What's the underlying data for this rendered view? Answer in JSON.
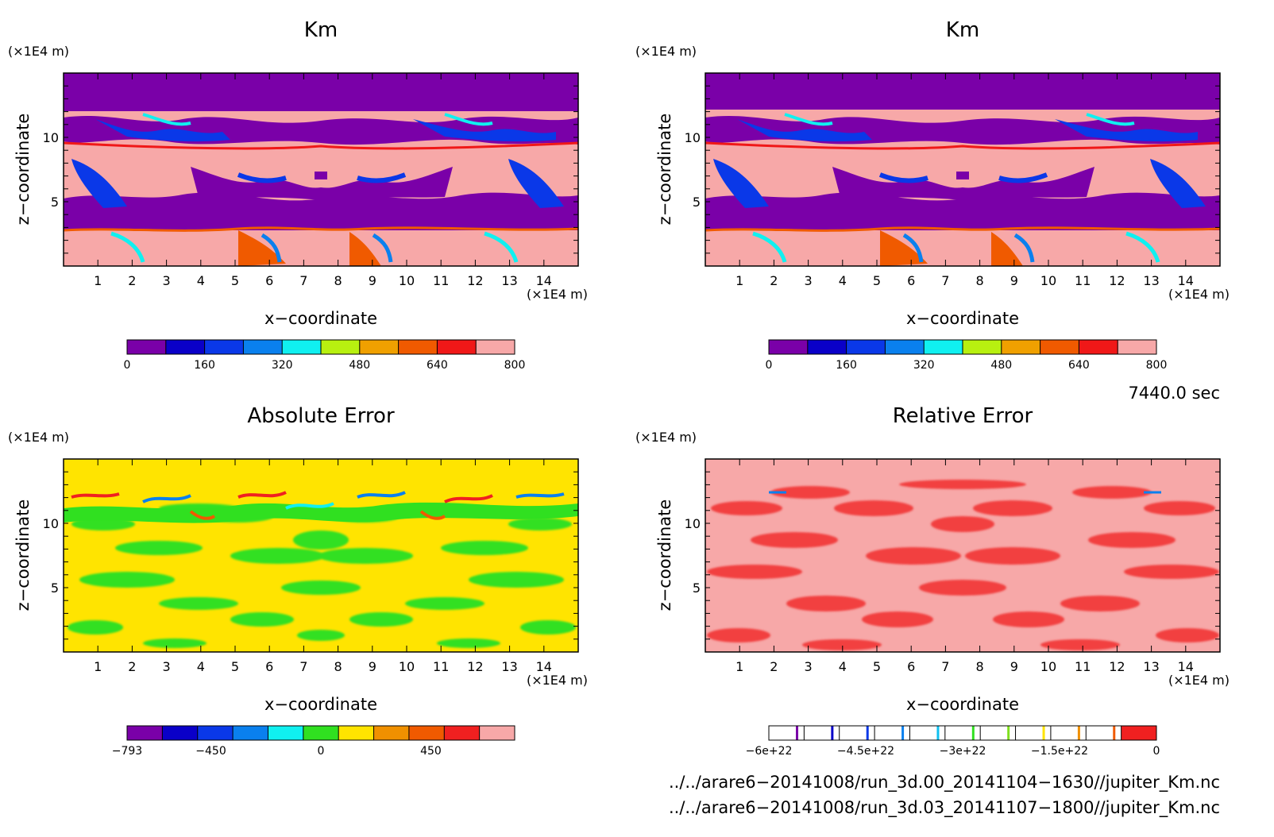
{
  "panels": [
    {
      "id": "km-left",
      "title": "Km",
      "xlabel": "x−coordinate",
      "ylabel": "z−coordinate",
      "xunit": "(×1E4 m)",
      "yunit": "(×1E4 m)",
      "xticks": [
        "1",
        "2",
        "3",
        "4",
        "5",
        "6",
        "7",
        "8",
        "9",
        "10",
        "11",
        "12",
        "13",
        "14"
      ],
      "yticks": [
        "5",
        "10"
      ],
      "colorbar": {
        "colors": [
          "#7a00a8",
          "#0a00c8",
          "#0a38e8",
          "#0a80ee",
          "#10f0f0",
          "#b8f010",
          "#f0a000",
          "#f05a00",
          "#f01818",
          "#f7a8a8"
        ],
        "ticks": [
          "0",
          "160",
          "320",
          "480",
          "640",
          "800"
        ],
        "tick_values": [
          0,
          160,
          320,
          480,
          640,
          800
        ],
        "range": [
          0,
          800
        ],
        "style": "filled"
      }
    },
    {
      "id": "km-right",
      "title": "Km",
      "xlabel": "x−coordinate",
      "ylabel": "z−coordinate",
      "xunit": "(×1E4 m)",
      "yunit": "(×1E4 m)",
      "xticks": [
        "1",
        "2",
        "3",
        "4",
        "5",
        "6",
        "7",
        "8",
        "9",
        "10",
        "11",
        "12",
        "13",
        "14"
      ],
      "yticks": [
        "5",
        "10"
      ],
      "colorbar": {
        "colors": [
          "#7a00a8",
          "#0a00c8",
          "#0a38e8",
          "#0a80ee",
          "#10f0f0",
          "#b8f010",
          "#f0a000",
          "#f05a00",
          "#f01818",
          "#f7a8a8"
        ],
        "ticks": [
          "0",
          "160",
          "320",
          "480",
          "640",
          "800"
        ],
        "tick_values": [
          0,
          160,
          320,
          480,
          640,
          800
        ],
        "range": [
          0,
          800
        ],
        "style": "filled"
      }
    },
    {
      "id": "abs-error",
      "title": "Absolute Error",
      "xlabel": "x−coordinate",
      "ylabel": "z−coordinate",
      "xunit": "(×1E4 m)",
      "yunit": "(×1E4 m)",
      "xticks": [
        "1",
        "2",
        "3",
        "4",
        "5",
        "6",
        "7",
        "8",
        "9",
        "10",
        "11",
        "12",
        "13",
        "14"
      ],
      "yticks": [
        "5",
        "10"
      ],
      "colorbar": {
        "colors": [
          "#7a00a8",
          "#0a00c8",
          "#0a38e8",
          "#0a80ee",
          "#10f0f0",
          "#30e020",
          "#ffe400",
          "#f09000",
          "#f05a00",
          "#f02020",
          "#f7a8a8"
        ],
        "ticks": [
          "−793",
          "−450",
          "0",
          "450"
        ],
        "tick_values": [
          -793,
          -450,
          0,
          450
        ],
        "range": [
          -793,
          793
        ],
        "style": "filled"
      }
    },
    {
      "id": "rel-error",
      "title": "Relative Error",
      "xlabel": "x−coordinate",
      "ylabel": "z−coordinate",
      "xunit": "(×1E4 m)",
      "yunit": "(×1E4 m)",
      "xticks": [
        "1",
        "2",
        "3",
        "4",
        "5",
        "6",
        "7",
        "8",
        "9",
        "10",
        "11",
        "12",
        "13",
        "14"
      ],
      "yticks": [
        "5",
        "10"
      ],
      "colorbar": {
        "colors": [
          "#7a00a8",
          "#0a00c8",
          "#0a38e8",
          "#0a80ee",
          "#10c0f0",
          "#30e020",
          "#80e020",
          "#ffe400",
          "#f09000",
          "#f05a00",
          "#f02020"
        ],
        "ticks": [
          "−6e+22",
          "−4.5e+22",
          "−3e+22",
          "−1.5e+22",
          "0"
        ],
        "tick_values": [
          -6e+22,
          -4.5e+22,
          -3e+22,
          -1.5e+22,
          0
        ],
        "range": [
          -6e+22,
          0
        ],
        "style": "lines"
      }
    }
  ],
  "time_label": "7440.0 sec",
  "file_paths": [
    "../../arare6−20141008/run_3d.00_20141104−1630//jupiter_Km.nc",
    "../../arare6−20141008/run_3d.03_20141107−1800//jupiter_Km.nc"
  ],
  "chart_data": [
    {
      "type": "heatmap",
      "title": "Km",
      "xlabel": "x−coordinate",
      "ylabel": "z−coordinate",
      "x_units": "×1E4 m",
      "y_units": "×1E4 m",
      "xlim": [
        0,
        15
      ],
      "ylim": [
        0,
        15
      ],
      "color_levels": [
        0,
        80,
        160,
        240,
        320,
        400,
        480,
        560,
        640,
        720,
        800
      ],
      "legend": "bottom"
    },
    {
      "type": "heatmap",
      "title": "Km",
      "xlabel": "x−coordinate",
      "ylabel": "z−coordinate",
      "x_units": "×1E4 m",
      "y_units": "×1E4 m",
      "xlim": [
        0,
        15
      ],
      "ylim": [
        0,
        15
      ],
      "color_levels": [
        0,
        80,
        160,
        240,
        320,
        400,
        480,
        560,
        640,
        720,
        800
      ],
      "legend": "bottom"
    },
    {
      "type": "heatmap",
      "title": "Absolute Error",
      "xlabel": "x−coordinate",
      "ylabel": "z−coordinate",
      "x_units": "×1E4 m",
      "y_units": "×1E4 m",
      "xlim": [
        0,
        15
      ],
      "ylim": [
        0,
        15
      ],
      "color_range": [
        -793,
        793
      ],
      "legend": "bottom"
    },
    {
      "type": "heatmap",
      "title": "Relative Error",
      "xlabel": "x−coordinate",
      "ylabel": "z−coordinate",
      "x_units": "×1E4 m",
      "y_units": "×1E4 m",
      "xlim": [
        0,
        15
      ],
      "ylim": [
        0,
        15
      ],
      "color_range": [
        -6e+22,
        0
      ],
      "legend": "bottom"
    }
  ]
}
